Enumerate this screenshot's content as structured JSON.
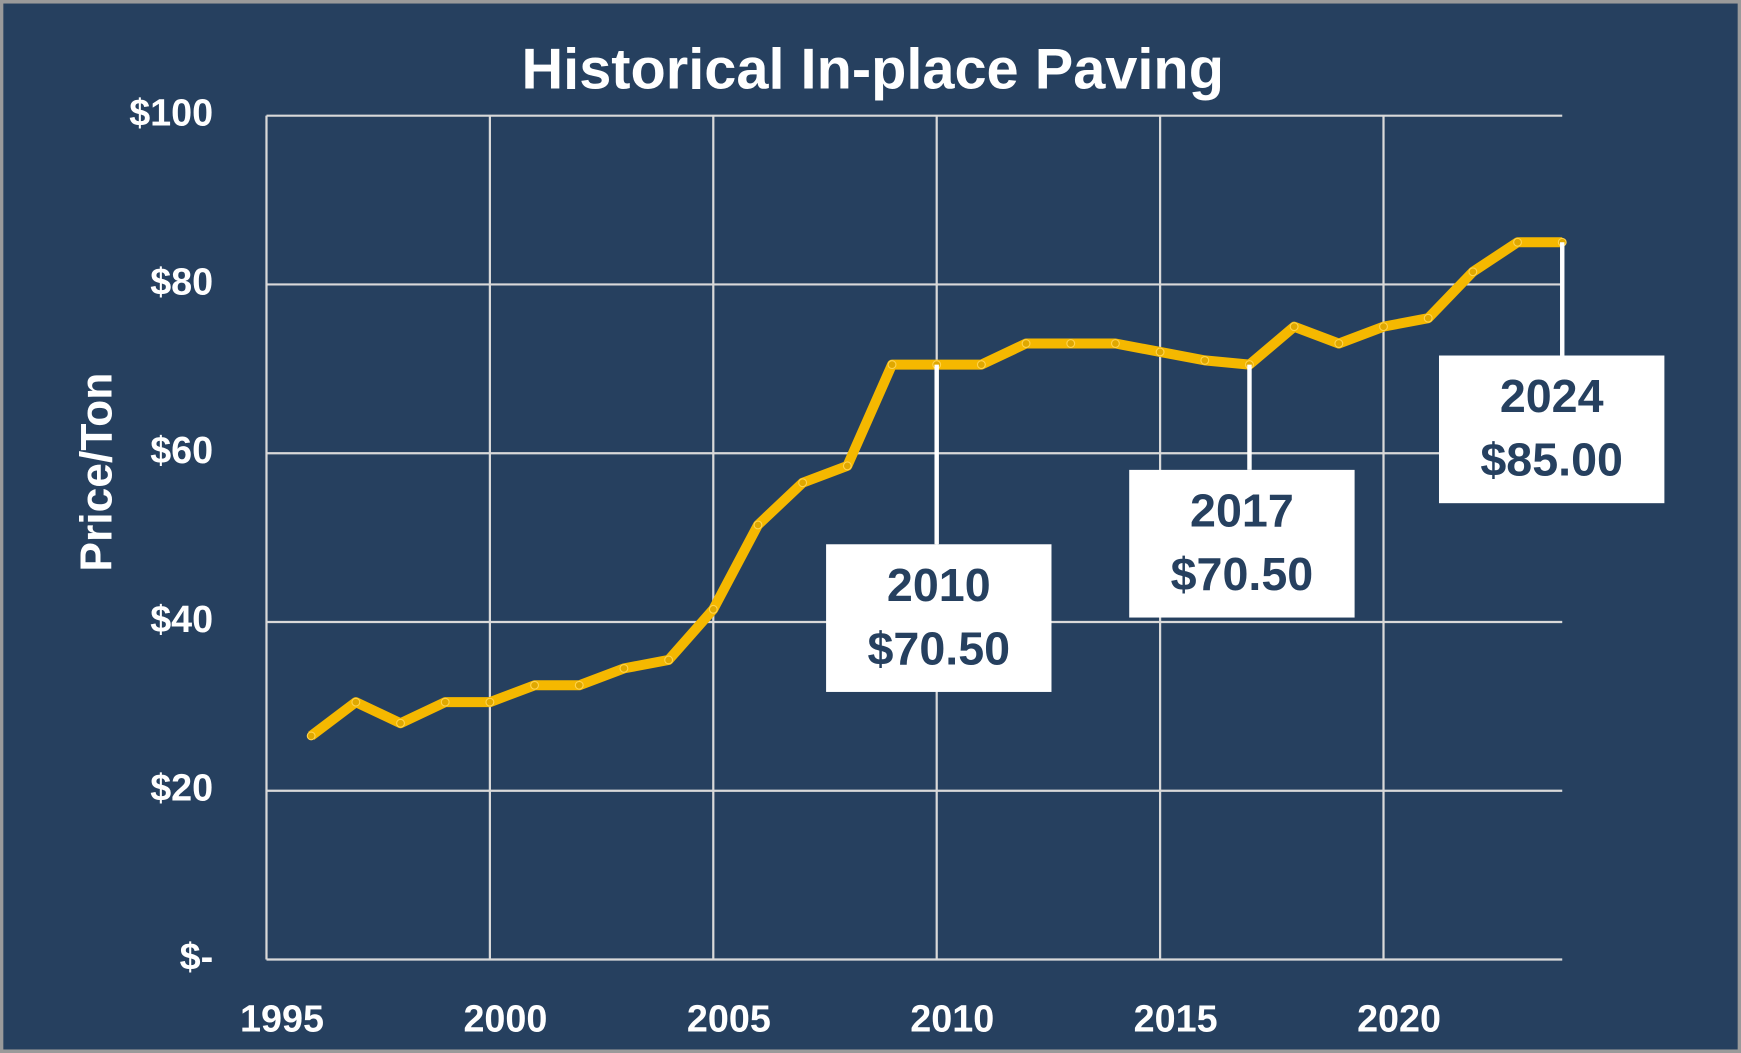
{
  "chart_data": {
    "type": "line",
    "title": "Historical In-place Paving",
    "y_label": "Price/Ton",
    "x": [
      1996,
      1997,
      1998,
      1999,
      2000,
      2001,
      2002,
      2003,
      2004,
      2005,
      2006,
      2007,
      2008,
      2009,
      2010,
      2011,
      2012,
      2013,
      2014,
      2015,
      2016,
      2017,
      2018,
      2019,
      2020,
      2021,
      2022,
      2023,
      2024
    ],
    "series": [
      {
        "name": "In-place Paving",
        "color": "#f5b800",
        "values": [
          26.5,
          30.5,
          28,
          30.5,
          30.5,
          32.5,
          32.5,
          34.5,
          35.5,
          41.5,
          51.5,
          56.5,
          58.5,
          70.5,
          70.5,
          70.5,
          73,
          73,
          73,
          72,
          71,
          70.5,
          75,
          73,
          75,
          76,
          81.5,
          85,
          85
        ]
      }
    ],
    "xlim": [
      1995,
      2024
    ],
    "xticks": [
      1995,
      2000,
      2005,
      2010,
      2015,
      2020
    ],
    "ylim": [
      0,
      100
    ],
    "yticks": [
      {
        "value": 0,
        "label": "$-"
      },
      {
        "value": 20,
        "label": "$20"
      },
      {
        "value": 40,
        "label": "$40"
      },
      {
        "value": 60,
        "label": "$60"
      },
      {
        "value": 80,
        "label": "$80"
      },
      {
        "value": 100,
        "label": "$100"
      }
    ],
    "grid": true,
    "annotations": [
      {
        "x": 2010,
        "y": 70.5,
        "text": [
          "2010",
          "$70.50"
        ]
      },
      {
        "x": 2017,
        "y": 70.5,
        "text": [
          "2017",
          "$70.50"
        ]
      },
      {
        "x": 2024,
        "y": 85,
        "text": [
          "2024",
          "$85.00"
        ]
      }
    ]
  }
}
